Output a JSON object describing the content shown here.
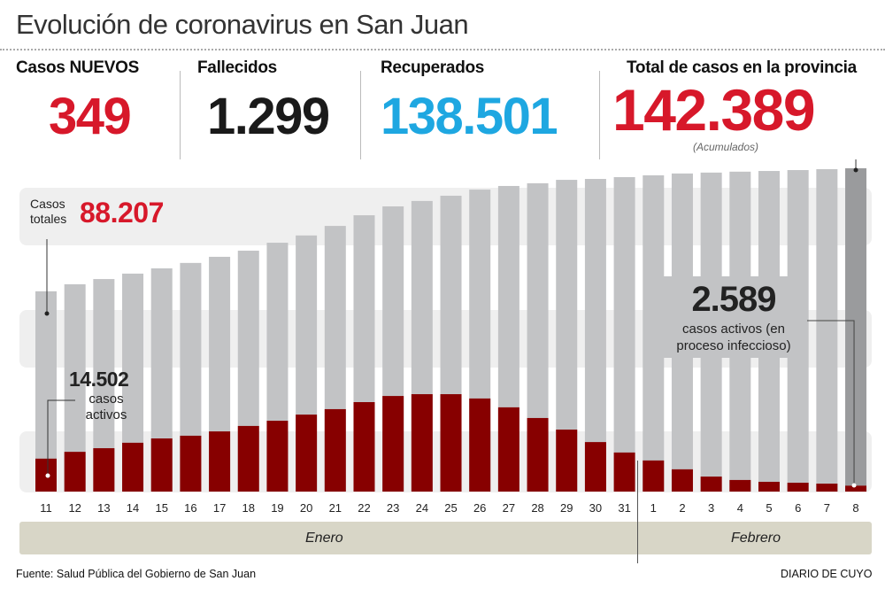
{
  "title": "Evolución de coronavirus en San Juan",
  "stats": {
    "new_cases": {
      "label": "Casos NUEVOS",
      "value": "349",
      "color": "#d7182a"
    },
    "deaths": {
      "label": "Fallecidos",
      "value": "1.299",
      "color": "#1a1a1a"
    },
    "recovered": {
      "label": "Recuperados",
      "value": "138.501",
      "color": "#1ea7e1"
    },
    "total": {
      "label": "Total de casos en la provincia",
      "value": "142.389",
      "note": "(Acumulados)",
      "color": "#d7182a"
    }
  },
  "annotations": {
    "total_start_label_1": "Casos",
    "total_start_label_2": "totales",
    "total_start_value": "88.207",
    "active_start_value": "14.502",
    "active_start_label_1": "casos",
    "active_start_label_2": "activos",
    "active_end_value": "2.589",
    "active_end_label_1": "casos activos (en",
    "active_end_label_2": "proceso infeccioso)"
  },
  "months": {
    "jan": "Enero",
    "feb": "Febrero"
  },
  "footer": {
    "source": "Fuente: Salud Pública del Gobierno de San Juan",
    "brand": "DIARIO DE CUYO"
  },
  "chart_data": {
    "type": "bar",
    "stacking": "overlay",
    "categories": [
      "11",
      "12",
      "13",
      "14",
      "15",
      "16",
      "17",
      "18",
      "19",
      "20",
      "21",
      "22",
      "23",
      "24",
      "25",
      "26",
      "27",
      "28",
      "29",
      "30",
      "31",
      "1",
      "2",
      "3",
      "4",
      "5",
      "6",
      "7",
      "8"
    ],
    "series": [
      {
        "name": "Casos totales",
        "color": "#c2c3c5",
        "values": [
          88207,
          91300,
          93600,
          96000,
          98300,
          100700,
          103400,
          106100,
          109600,
          112800,
          117000,
          121700,
          125600,
          128000,
          130300,
          133000,
          134600,
          135800,
          137300,
          137700,
          138500,
          139300,
          140100,
          140500,
          140900,
          141200,
          141600,
          142000,
          142389
        ]
      },
      {
        "name": "casos activos",
        "color": "#870000",
        "values": [
          14502,
          17500,
          19100,
          21500,
          23400,
          24600,
          26500,
          28900,
          31200,
          33900,
          36300,
          39400,
          42100,
          42900,
          42900,
          41000,
          37100,
          32400,
          27300,
          21800,
          17200,
          13700,
          9800,
          6600,
          5100,
          4300,
          3900,
          3500,
          2589
        ]
      }
    ],
    "highlight_last_color": "#9a9b9d",
    "ylim": [
      0,
      142389
    ],
    "grid": false
  }
}
